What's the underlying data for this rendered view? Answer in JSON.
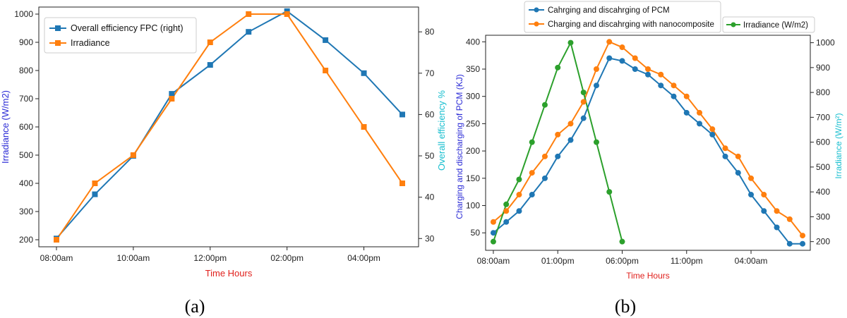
{
  "chart_data": [
    {
      "id": "a",
      "type": "line",
      "caption": "(a)",
      "xlabel": "Time Hours",
      "ylabel": "Irradiance (W/m2)",
      "ylabel_right": "Overall efficiency %",
      "categories": [
        "08:00am",
        "09:00am",
        "10:00am",
        "11:00am",
        "12:00pm",
        "01:00pm",
        "02:00pm",
        "03:00pm",
        "04:00pm",
        "05:00pm"
      ],
      "xtick_labels": [
        "08:00am",
        "10:00am",
        "12:00pm",
        "02:00pm",
        "04:00pm"
      ],
      "xtick_index": [
        0,
        2,
        4,
        6,
        8
      ],
      "ylim_left": [
        175,
        1025
      ],
      "yticks_left": [
        200,
        300,
        400,
        500,
        600,
        700,
        800,
        900,
        1000
      ],
      "ylim_right": [
        28,
        86
      ],
      "yticks_right": [
        30,
        40,
        50,
        60,
        70,
        80
      ],
      "legend_position": "top-left",
      "colors": {
        "efficiency": "#1f77b4",
        "irradiance": "#ff7f0e",
        "ylabel_left": "#2b2bd6",
        "ylabel_right": "#17becf",
        "xlabel": "#e0201c"
      },
      "series": [
        {
          "name": "Overall efficiency FPC (right)",
          "axis": "right",
          "marker": "square",
          "values": [
            30,
            40.7,
            50,
            65,
            72,
            80,
            85,
            78,
            70,
            60
          ]
        },
        {
          "name": "Irradiance",
          "axis": "left",
          "marker": "square",
          "values": [
            200,
            400,
            500,
            700,
            900,
            1000,
            1000,
            800,
            600,
            400
          ]
        }
      ]
    },
    {
      "id": "b",
      "type": "line",
      "caption": "(b)",
      "xlabel": "Time Hours",
      "ylabel": "Charging and discharging of PCM (KJ)",
      "ylabel_right": "Irradiance (W/m²)",
      "xlim": [
        -0.6,
        24.6
      ],
      "xtick_labels": [
        "08:00am",
        "01:00pm",
        "06:00pm",
        "11:00pm",
        "04:00am"
      ],
      "xtick_pos": [
        0,
        5,
        10,
        15,
        20
      ],
      "ylim_left": [
        18,
        412
      ],
      "yticks_left": [
        50,
        100,
        150,
        200,
        250,
        300,
        350,
        400
      ],
      "ylim_right": [
        165,
        1030
      ],
      "yticks_right": [
        200,
        300,
        400,
        500,
        600,
        700,
        800,
        900,
        1000
      ],
      "legend_position": "top",
      "colors": {
        "pcm": "#1f77b4",
        "nano": "#ff7f0e",
        "irr": "#2ca02c",
        "ylabel_left": "#2b2bd6",
        "ylabel_right": "#17becf",
        "xlabel": "#e0201c"
      },
      "series": [
        {
          "name": "Cahrging and discahrging of PCM",
          "axis": "left",
          "marker": "circle",
          "x": [
            0,
            1,
            2,
            3,
            4,
            5,
            6,
            7,
            8,
            9,
            10,
            11,
            12,
            13,
            14,
            15,
            16,
            17,
            18,
            19,
            20,
            21,
            22,
            23,
            24
          ],
          "values": [
            50,
            70,
            90,
            120,
            150,
            190,
            220,
            260,
            320,
            370,
            365,
            350,
            340,
            320,
            300,
            270,
            250,
            230,
            190,
            160,
            120,
            90,
            60,
            30,
            30
          ]
        },
        {
          "name": "Charging and discahrging with nanocomposite",
          "axis": "left",
          "marker": "circle",
          "x": [
            0,
            1,
            2,
            3,
            4,
            5,
            6,
            7,
            8,
            9,
            10,
            11,
            12,
            13,
            14,
            15,
            16,
            17,
            18,
            19,
            20,
            21,
            22,
            23,
            24
          ],
          "values": [
            70,
            90,
            120,
            160,
            190,
            230,
            250,
            290,
            350,
            400,
            390,
            370,
            350,
            340,
            320,
            300,
            270,
            240,
            205,
            190,
            150,
            120,
            90,
            75,
            45
          ]
        },
        {
          "name": "Irradiance (W/m2)",
          "axis": "right",
          "marker": "circle",
          "x": [
            0,
            1,
            2,
            3,
            4,
            5,
            6,
            7,
            8,
            9,
            10
          ],
          "values": [
            200,
            350,
            450,
            600,
            750,
            900,
            1000,
            800,
            600,
            400,
            200
          ]
        }
      ]
    }
  ]
}
